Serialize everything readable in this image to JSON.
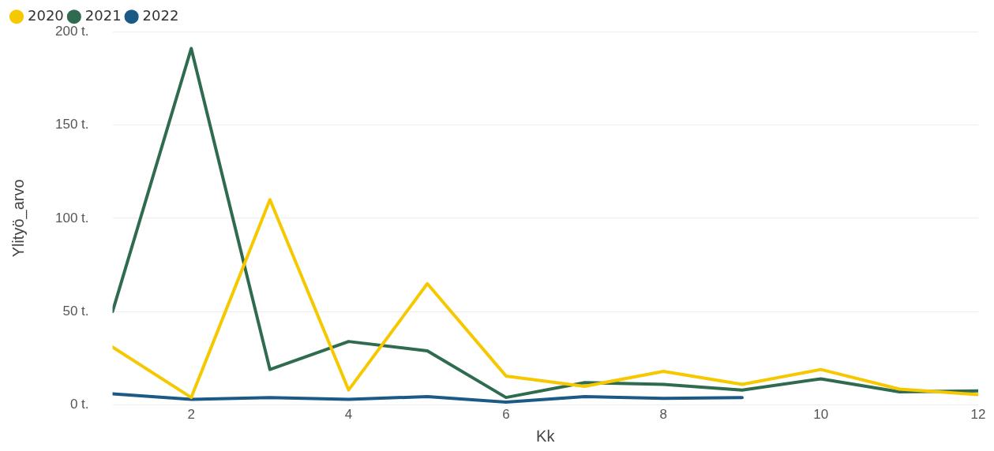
{
  "chart_data": {
    "type": "line",
    "xlabel": "Kk",
    "ylabel": "Ylityö_arvo",
    "x": [
      1,
      2,
      3,
      4,
      5,
      6,
      7,
      8,
      9,
      10,
      11,
      12
    ],
    "series": [
      {
        "name": "2020",
        "color": "#f5c800",
        "values": [
          31,
          4,
          110,
          8,
          65,
          15.5,
          10,
          18,
          11,
          19,
          8.5,
          5.5
        ]
      },
      {
        "name": "2021",
        "color": "#2f6b4f",
        "values": [
          50,
          191,
          19,
          34,
          29,
          4,
          12,
          11,
          8,
          14,
          7,
          7.5
        ]
      },
      {
        "name": "2022",
        "color": "#1b5a86",
        "values": [
          6,
          3,
          4,
          3,
          4.5,
          1.5,
          4.5,
          3.5,
          4,
          null,
          null,
          null
        ]
      }
    ],
    "xlim": [
      1,
      12
    ],
    "xticks": [
      2,
      4,
      6,
      8,
      10,
      12
    ],
    "ylim": [
      0,
      200
    ],
    "yticks": [
      {
        "value": 0,
        "label": "0 t."
      },
      {
        "value": 50,
        "label": "50 t."
      },
      {
        "value": 100,
        "label": "100 t."
      },
      {
        "value": 150,
        "label": "150 t."
      },
      {
        "value": 200,
        "label": "200 t."
      }
    ],
    "grid": "y",
    "legend": "top left",
    "line_style": "solid"
  }
}
